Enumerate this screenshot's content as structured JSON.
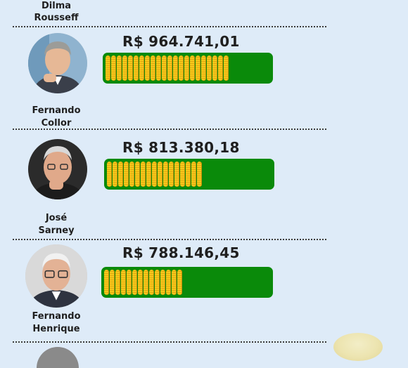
{
  "previous_entry": {
    "name_line1": "Dilma",
    "name_line2": "Rousseff"
  },
  "entries": [
    {
      "name_line1": "Fernando",
      "name_line2": "Collor",
      "amount": "R$ 964.741,01",
      "fill_fraction": 0.75
    },
    {
      "name_line1": "José",
      "name_line2": "Sarney",
      "amount": "R$ 813.380,18",
      "fill_fraction": 0.59
    },
    {
      "name_line1": "Fernando",
      "name_line2": "Henrique",
      "amount": "R$ 788.146,45",
      "fill_fraction": 0.5
    }
  ],
  "colors": {
    "background": "#deebf8",
    "bar_green": "#0a8a0a",
    "coin_gold": "#f7c91a"
  },
  "icons": [
    "portrait-photo",
    "gold-coin-stack"
  ]
}
